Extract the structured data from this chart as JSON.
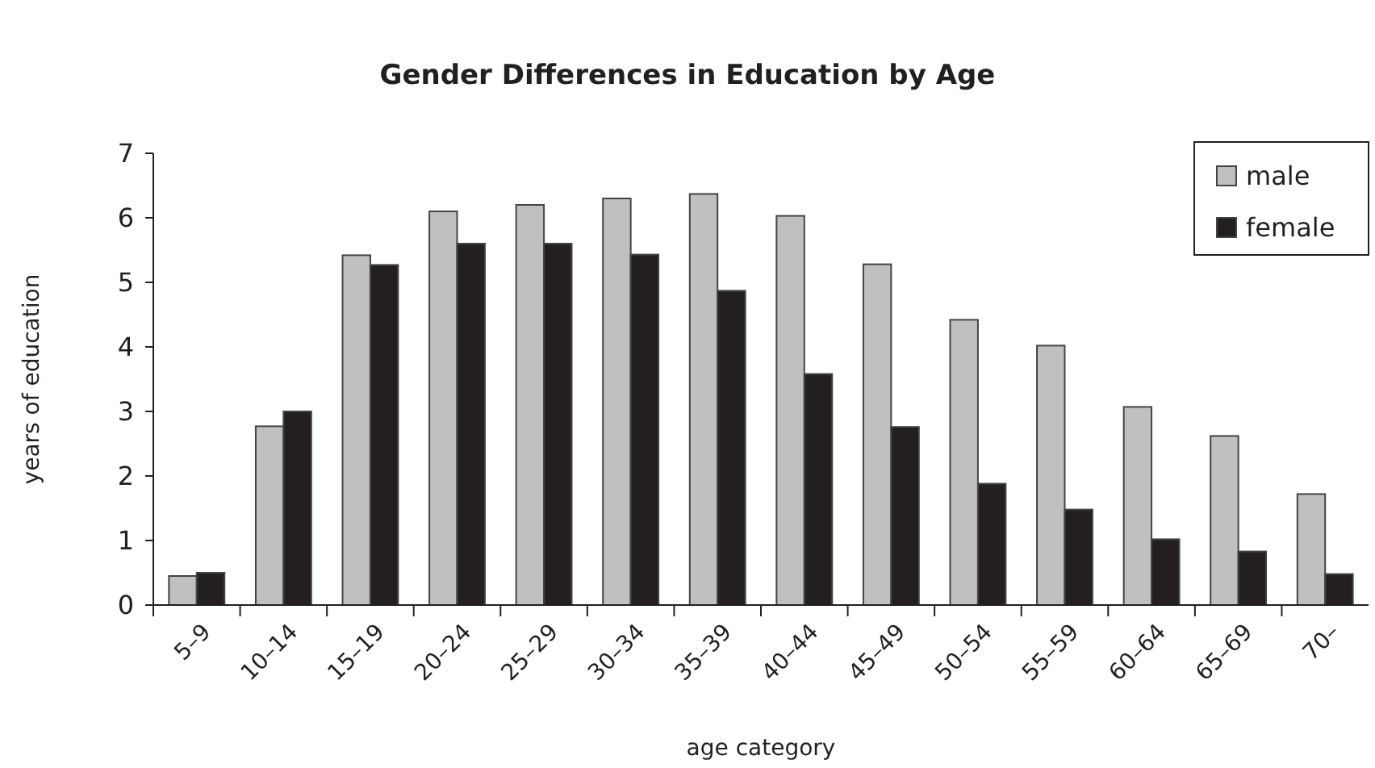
{
  "chart_data": {
    "type": "bar",
    "title": "Gender Differences in Education by Age",
    "xlabel": "age category",
    "ylabel": "years of education",
    "categories": [
      "5–9",
      "10–14",
      "15–19",
      "20–24",
      "25–29",
      "30–34",
      "35–39",
      "40–44",
      "45–49",
      "50–54",
      "55–59",
      "60–64",
      "65–69",
      "70–"
    ],
    "series": [
      {
        "name": "male",
        "color": "#bfc0c2",
        "values": [
          0.45,
          2.77,
          5.42,
          6.1,
          6.2,
          6.3,
          6.37,
          6.03,
          5.28,
          4.42,
          4.02,
          3.07,
          2.62,
          1.72
        ]
      },
      {
        "name": "female",
        "color": "#231f20",
        "values": [
          0.5,
          3.0,
          5.27,
          5.6,
          5.6,
          5.43,
          4.87,
          3.58,
          2.76,
          1.88,
          1.48,
          1.02,
          0.83,
          0.48
        ]
      }
    ],
    "ylim": [
      0,
      7
    ],
    "yticks": [
      0,
      1,
      2,
      3,
      4,
      5,
      6,
      7
    ],
    "grid": false,
    "legend": "top right"
  }
}
